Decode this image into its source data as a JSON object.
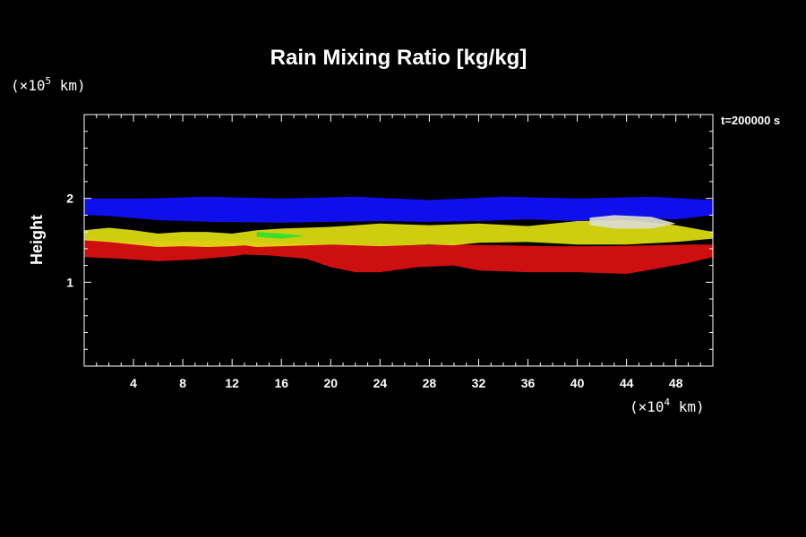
{
  "chart_data": {
    "type": "heatmap",
    "title": "Rain Mixing Ratio [kg/kg]",
    "ylabel": "Height",
    "xunit": {
      "prefix": "(×10",
      "exp": "4",
      "suffix": " km)"
    },
    "yunit": {
      "prefix": "(×10",
      "exp": "5",
      "suffix": " km)"
    },
    "time_label": "t=200000 s",
    "xlim": [
      0,
      51
    ],
    "ylim": [
      0,
      3
    ],
    "x_ticks": [
      4,
      8,
      12,
      16,
      20,
      24,
      28,
      32,
      36,
      40,
      44,
      48
    ],
    "y_ticks": [
      1,
      2
    ],
    "grid": false,
    "colors": {
      "background": "#000000",
      "frame": "#ffffff"
    },
    "layers": [
      {
        "color": "#1010ff",
        "points": [
          [
            0,
            2.0
          ],
          [
            5,
            2.0
          ],
          [
            10,
            2.02
          ],
          [
            16,
            2.0
          ],
          [
            22,
            2.02
          ],
          [
            28,
            1.98
          ],
          [
            34,
            2.02
          ],
          [
            40,
            2.0
          ],
          [
            46,
            2.02
          ],
          [
            51,
            1.98
          ],
          [
            51,
            1.8
          ],
          [
            48,
            1.75
          ],
          [
            44,
            1.77
          ],
          [
            40,
            1.73
          ],
          [
            36,
            1.75
          ],
          [
            32,
            1.73
          ],
          [
            28,
            1.72
          ],
          [
            24,
            1.73
          ],
          [
            20,
            1.72
          ],
          [
            16,
            1.71
          ],
          [
            10,
            1.72
          ],
          [
            6,
            1.74
          ],
          [
            2,
            1.79
          ],
          [
            0,
            1.8
          ]
        ]
      },
      {
        "color": "#e01010",
        "points": [
          [
            0,
            1.52
          ],
          [
            2,
            1.5
          ],
          [
            4,
            1.48
          ],
          [
            6,
            1.49
          ],
          [
            9,
            1.5
          ],
          [
            12,
            1.49
          ],
          [
            13,
            1.48
          ],
          [
            15,
            1.47
          ],
          [
            18,
            1.46
          ],
          [
            22,
            1.45
          ],
          [
            26,
            1.44
          ],
          [
            30,
            1.45
          ],
          [
            34,
            1.44
          ],
          [
            38,
            1.43
          ],
          [
            42,
            1.43
          ],
          [
            46,
            1.44
          ],
          [
            49,
            1.45
          ],
          [
            51,
            1.45
          ],
          [
            51,
            1.3
          ],
          [
            49,
            1.23
          ],
          [
            46,
            1.15
          ],
          [
            44,
            1.1
          ],
          [
            40,
            1.12
          ],
          [
            36,
            1.12
          ],
          [
            32,
            1.14
          ],
          [
            30,
            1.2
          ],
          [
            27,
            1.18
          ],
          [
            24,
            1.12
          ],
          [
            22,
            1.12
          ],
          [
            20,
            1.18
          ],
          [
            18,
            1.28
          ],
          [
            15,
            1.32
          ],
          [
            13,
            1.33
          ],
          [
            12,
            1.31
          ],
          [
            9,
            1.27
          ],
          [
            6,
            1.25
          ],
          [
            3,
            1.28
          ],
          [
            0,
            1.3
          ]
        ]
      },
      {
        "color": "#e0e010",
        "points": [
          [
            0,
            1.62
          ],
          [
            2,
            1.65
          ],
          [
            4,
            1.62
          ],
          [
            6,
            1.58
          ],
          [
            8,
            1.6
          ],
          [
            10,
            1.6
          ],
          [
            12,
            1.58
          ],
          [
            14,
            1.62
          ],
          [
            16,
            1.64
          ],
          [
            20,
            1.66
          ],
          [
            24,
            1.7
          ],
          [
            28,
            1.68
          ],
          [
            32,
            1.7
          ],
          [
            36,
            1.67
          ],
          [
            40,
            1.73
          ],
          [
            44,
            1.74
          ],
          [
            48,
            1.68
          ],
          [
            51,
            1.6
          ],
          [
            51,
            1.52
          ],
          [
            48,
            1.48
          ],
          [
            44,
            1.45
          ],
          [
            40,
            1.45
          ],
          [
            36,
            1.48
          ],
          [
            32,
            1.47
          ],
          [
            30,
            1.44
          ],
          [
            28,
            1.45
          ],
          [
            24,
            1.43
          ],
          [
            20,
            1.45
          ],
          [
            16,
            1.43
          ],
          [
            14,
            1.42
          ],
          [
            13,
            1.44
          ],
          [
            12,
            1.43
          ],
          [
            10,
            1.42
          ],
          [
            8,
            1.43
          ],
          [
            6,
            1.42
          ],
          [
            4,
            1.45
          ],
          [
            2,
            1.48
          ],
          [
            0,
            1.5
          ]
        ]
      },
      {
        "color": "#dcdcd0",
        "points": [
          [
            41,
            1.77
          ],
          [
            43,
            1.8
          ],
          [
            46,
            1.78
          ],
          [
            48,
            1.7
          ],
          [
            46,
            1.64
          ],
          [
            43,
            1.64
          ],
          [
            41,
            1.68
          ]
        ]
      },
      {
        "color": "#30e030",
        "points": [
          [
            14,
            1.6
          ],
          [
            16,
            1.58
          ],
          [
            18,
            1.55
          ],
          [
            16,
            1.52
          ],
          [
            14,
            1.54
          ]
        ]
      }
    ]
  }
}
